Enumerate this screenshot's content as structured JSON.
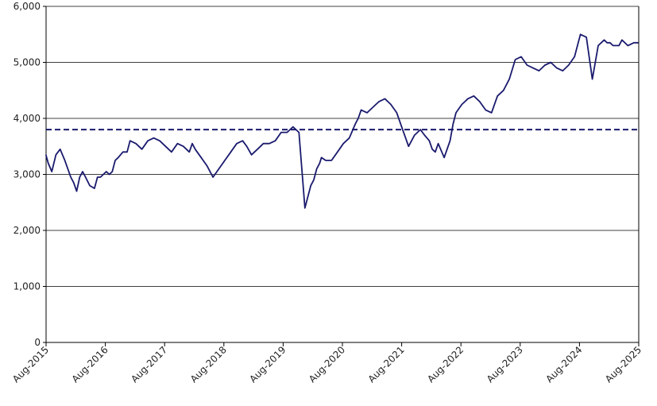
{
  "chart_data": {
    "type": "line",
    "title": "",
    "xlabel": "",
    "ylabel": "",
    "ylim": [
      0,
      6000
    ],
    "y_ticks": [
      0,
      1000,
      2000,
      3000,
      4000,
      5000,
      6000
    ],
    "y_tick_labels": [
      "0",
      "1,000",
      "2,000",
      "3,000",
      "4,000",
      "5,000",
      "6,000"
    ],
    "x_ticks": [
      2015.5833,
      2016.5833,
      2017.5833,
      2018.5833,
      2019.5833,
      2020.5833,
      2021.5833,
      2022.5833,
      2023.5833,
      2024.5833,
      2025.5833
    ],
    "x_tick_labels": [
      "Aug-2015",
      "Aug-2016",
      "Aug-2017",
      "Aug-2018",
      "Aug-2019",
      "Aug-2020",
      "Aug-2021",
      "Aug-2022",
      "Aug-2023",
      "Aug-2024",
      "Aug-2025"
    ],
    "xlim": [
      2015.5833,
      2025.5833
    ],
    "grid": "horizontal",
    "legend": "none",
    "colors": {
      "series": "#1a1a6e",
      "reference": "#1a1a6e",
      "grid": "#000000"
    },
    "series": [
      {
        "line_style": "solid",
        "x": [
          2015.58,
          2015.62,
          2015.68,
          2015.75,
          2015.82,
          2015.9,
          2016.0,
          2016.05,
          2016.1,
          2016.15,
          2016.2,
          2016.25,
          2016.32,
          2016.4,
          2016.45,
          2016.5,
          2016.55,
          2016.6,
          2016.65,
          2016.7,
          2016.75,
          2016.8,
          2016.88,
          2016.95,
          2017.0,
          2017.1,
          2017.2,
          2017.3,
          2017.4,
          2017.5,
          2017.6,
          2017.7,
          2017.8,
          2017.9,
          2018.0,
          2018.05,
          2018.1,
          2018.2,
          2018.3,
          2018.4,
          2018.5,
          2018.6,
          2018.7,
          2018.8,
          2018.9,
          2018.97,
          2019.05,
          2019.15,
          2019.25,
          2019.35,
          2019.45,
          2019.55,
          2019.65,
          2019.75,
          2019.85,
          2019.95,
          2020.05,
          2020.1,
          2020.15,
          2020.2,
          2020.23,
          2020.3,
          2020.4,
          2020.5,
          2020.6,
          2020.7,
          2020.8,
          2020.85,
          2020.9,
          2021.0,
          2021.1,
          2021.2,
          2021.3,
          2021.4,
          2021.5,
          2021.6,
          2021.7,
          2021.8,
          2021.9,
          2021.97,
          2022.05,
          2022.1,
          2022.15,
          2022.2,
          2022.3,
          2022.4,
          2022.45,
          2022.5,
          2022.6,
          2022.65,
          2022.7,
          2022.8,
          2022.9,
          2023.0,
          2023.1,
          2023.2,
          2023.3,
          2023.4,
          2023.5,
          2023.6,
          2023.7,
          2023.8,
          2023.9,
          2024.0,
          2024.1,
          2024.2,
          2024.3,
          2024.4,
          2024.5,
          2024.6,
          2024.7,
          2024.8,
          2024.9,
          2025.0,
          2025.05,
          2025.1,
          2025.15,
          2025.25,
          2025.3,
          2025.4,
          2025.5,
          2025.58
        ],
        "values": [
          3350,
          3200,
          3050,
          3350,
          3450,
          3250,
          2950,
          2850,
          2700,
          2950,
          3050,
          2950,
          2800,
          2750,
          2950,
          2950,
          3000,
          3050,
          3000,
          3050,
          3250,
          3300,
          3400,
          3400,
          3600,
          3550,
          3450,
          3600,
          3650,
          3600,
          3500,
          3400,
          3550,
          3500,
          3400,
          3550,
          3450,
          3300,
          3150,
          2950,
          3100,
          3250,
          3400,
          3550,
          3600,
          3500,
          3350,
          3450,
          3550,
          3550,
          3600,
          3750,
          3750,
          3850,
          3750,
          2400,
          2800,
          2900,
          3100,
          3200,
          3300,
          3250,
          3250,
          3400,
          3550,
          3650,
          3900,
          4000,
          4150,
          4100,
          4200,
          4300,
          4350,
          4250,
          4100,
          3800,
          3500,
          3700,
          3800,
          3700,
          3600,
          3450,
          3400,
          3550,
          3300,
          3600,
          3900,
          4100,
          4250,
          4300,
          4350,
          4400,
          4300,
          4150,
          4100,
          4400,
          4500,
          4700,
          5050,
          5100,
          4950,
          4900,
          4850,
          4950,
          5000,
          4900,
          4850,
          4950,
          5100,
          5500,
          5450,
          4700,
          5300,
          5400,
          5350,
          5350,
          5300,
          5300,
          5400,
          5300,
          5350,
          5350
        ],
        "name": ""
      },
      {
        "line_style": "dashed",
        "x": [
          2015.5833,
          2025.5833
        ],
        "values": [
          3800,
          3800
        ],
        "name": ""
      }
    ]
  }
}
